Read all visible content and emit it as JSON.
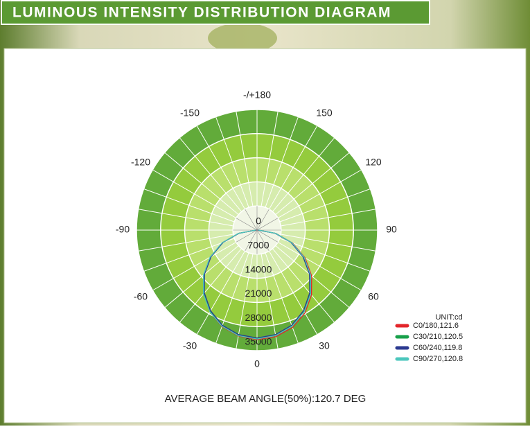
{
  "chart_data": {
    "type": "polar",
    "title": "LUMINOUS INTENSITY DISTRIBUTION DIAGRAM",
    "annotation": "AVERAGE BEAM ANGLE(50%):120.7 DEG",
    "legend_title": "UNIT:cd",
    "x": [
      -90,
      -80,
      -70,
      -60,
      -50,
      -40,
      -30,
      -20,
      -10,
      0,
      10,
      20,
      30,
      40,
      50,
      60,
      70,
      80,
      90
    ],
    "series": [
      {
        "name": "C0/180,121.6",
        "color": "#e3262b",
        "values": [
          300,
          5400,
          10700,
          15700,
          20200,
          24100,
          27400,
          29800,
          31200,
          31800,
          31400,
          30100,
          27800,
          24600,
          20700,
          16100,
          11000,
          5600,
          400
        ]
      },
      {
        "name": "C30/210,120.5",
        "color": "#17a04a",
        "values": [
          300,
          5400,
          10700,
          15600,
          20100,
          24000,
          27200,
          29600,
          31000,
          31500,
          31100,
          29700,
          27300,
          24100,
          20200,
          15700,
          10800,
          5500,
          400
        ]
      },
      {
        "name": "C60/240,119.8",
        "color": "#2b3990",
        "values": [
          300,
          5300,
          10500,
          15400,
          19900,
          23800,
          27000,
          29400,
          30800,
          31300,
          30800,
          29400,
          27000,
          23800,
          19900,
          15400,
          10500,
          5300,
          300
        ]
      },
      {
        "name": "C90/270,120.8",
        "color": "#4cc7bd",
        "values": [
          400,
          5500,
          10800,
          15800,
          20300,
          24200,
          27400,
          29700,
          31100,
          31600,
          31100,
          29700,
          27400,
          24200,
          20300,
          15800,
          10800,
          5500,
          400
        ]
      }
    ],
    "rlim": [
      0,
      35000
    ],
    "rticks": [
      0,
      7000,
      14000,
      21000,
      28000,
      35000
    ],
    "xticks": [
      0,
      30,
      60,
      90,
      120,
      150,
      {
        "value": 180,
        "label": "-/+180"
      },
      -30,
      -60,
      -90,
      -120,
      -150
    ],
    "ring_colors": [
      "#f1f6e6",
      "#d6ecae",
      "#b9df6c",
      "#94cb3d",
      "#62ab3a"
    ],
    "grid": true
  }
}
